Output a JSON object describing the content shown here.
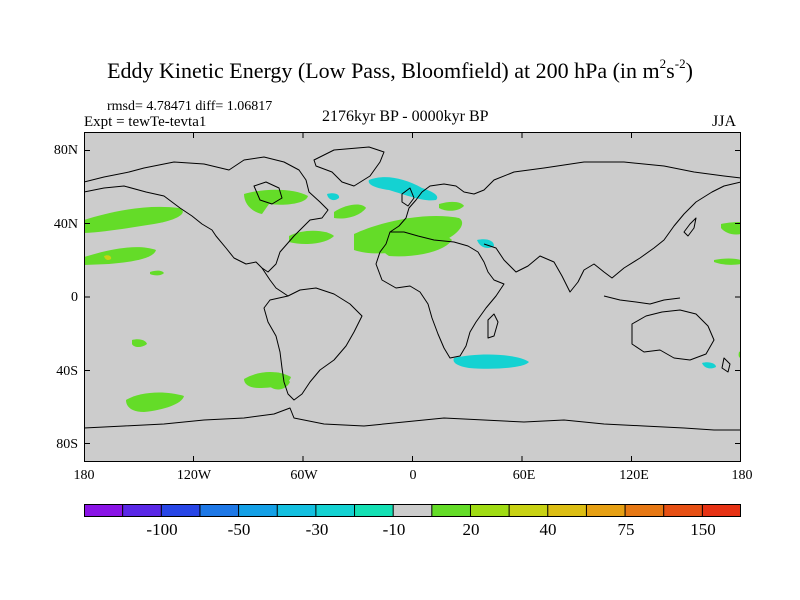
{
  "title": {
    "main": "Eddy Kinetic Energy (Low Pass, Bloomfield) at 200 hPa (in m",
    "exp1": "2",
    "mid": "s",
    "exp2": "-2",
    "end": ")"
  },
  "stats": {
    "rmsd_label": "rmsd= 4.78471",
    "diff_label": "diff= 1.06817"
  },
  "experiment_label": "Expt = tewTe-tevta1",
  "period_label": "2176kyr BP - 0000kyr BP",
  "season_label": "JJA",
  "lat_labels": [
    "80N",
    "40N",
    "0",
    "40S",
    "80S"
  ],
  "lon_labels": [
    "180",
    "120W",
    "60W",
    "0",
    "60E",
    "120E",
    "180"
  ],
  "colorbar": {
    "colors": [
      "#8a14e6",
      "#5a28e6",
      "#2846e6",
      "#1e78e6",
      "#14a0e6",
      "#14c0e0",
      "#14d2d2",
      "#14e0b4",
      "#cccccc",
      "#64dc28",
      "#a0dc14",
      "#c8d214",
      "#dcbe14",
      "#e6a014",
      "#e67814",
      "#e65014",
      "#e63214"
    ],
    "tick_labels": [
      "-100",
      "-50",
      "-30",
      "-10",
      "20",
      "40",
      "75",
      "150"
    ]
  },
  "map": {
    "background": "#cccccc",
    "positive_color": "#64dc28",
    "negative_color": "#14d2d2",
    "highlight_color": "#c8d214"
  }
}
